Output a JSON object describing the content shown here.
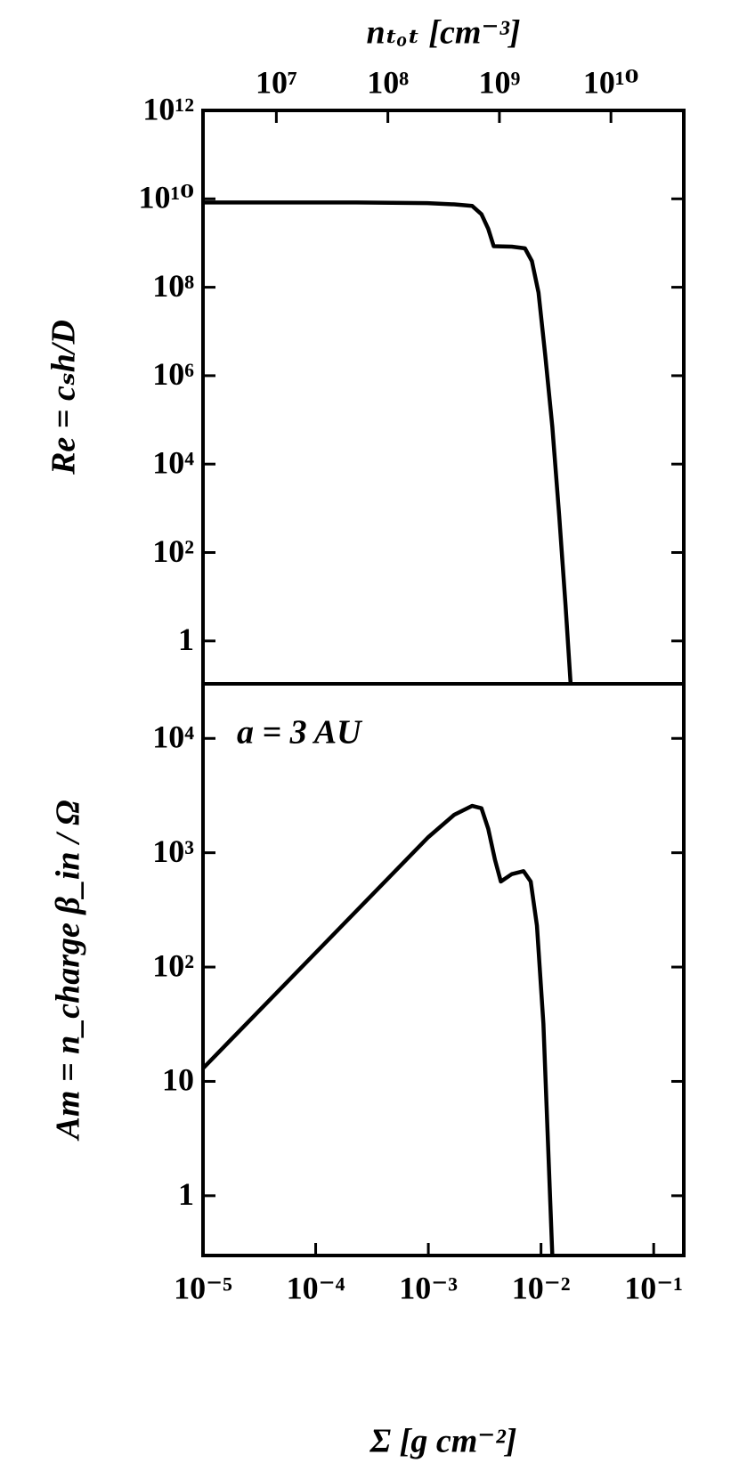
{
  "chart_data": [
    {
      "type": "line",
      "x2label": "nₜₒₜ [cm⁻³]",
      "ylabel": "Re = cₛh/D",
      "xlim": [
        1e-05,
        0.185
      ],
      "xscale": "log",
      "x2lim": [
        2200000.0,
        45000000000.0
      ],
      "x2ticks": [
        {
          "value": 10000000.0,
          "label": "10⁷"
        },
        {
          "value": 100000000.0,
          "label": "10⁸"
        },
        {
          "value": 1000000000.0,
          "label": "10⁹"
        },
        {
          "value": 10000000000.0,
          "label": "10¹⁰"
        }
      ],
      "ylim": [
        0.107,
        1000000000000.0
      ],
      "yscale": "log",
      "yticks": [
        1,
        {
          "value": 100,
          "label": "10²"
        },
        {
          "value": 10000.0,
          "label": "10⁴"
        },
        {
          "value": 1000000.0,
          "label": "10⁶"
        },
        {
          "value": 100000000.0,
          "label": "10⁸"
        },
        {
          "value": 10000000000.0,
          "label": "10¹⁰"
        },
        {
          "value": 1000000000000.0,
          "label": "10¹²"
        }
      ],
      "color": "#000000",
      "x": [
        1e-05,
        0.00023,
        0.00098,
        0.0017,
        0.00245,
        0.00296,
        0.0034,
        0.0038,
        0.0055,
        0.0072,
        0.0083,
        0.0095,
        0.0109,
        0.0126,
        0.0145,
        0.0165,
        0.0183
      ],
      "values": [
        8300000000.0,
        8300000000.0,
        8000000000.0,
        7500000000.0,
        6900000000.0,
        4500000000.0,
        2100000000.0,
        850000000.0,
        830000000.0,
        760000000.0,
        390000000.0,
        76000000.0,
        2900000.0,
        70000.0,
        680,
        6.5,
        0.11
      ]
    },
    {
      "type": "line",
      "xlabel": "Σ [g cm⁻²]",
      "ylabel": "Am = n_charge β_in / Ω",
      "annotation": "a = 3 AU",
      "xlim": [
        1e-05,
        0.185
      ],
      "xscale": "log",
      "xticks": [
        {
          "value": 1e-05,
          "label": "10⁻⁵"
        },
        {
          "value": 0.0001,
          "label": "10⁻⁴"
        },
        {
          "value": 0.001,
          "label": "10⁻³"
        },
        {
          "value": 0.01,
          "label": "10⁻²"
        },
        {
          "value": 0.1,
          "label": "10⁻¹"
        }
      ],
      "ylim": [
        0.3,
        30000.0
      ],
      "yscale": "log",
      "yticks": [
        1,
        10,
        {
          "value": 100,
          "label": "10²"
        },
        {
          "value": 1000,
          "label": "10³"
        },
        {
          "value": 10000.0,
          "label": "10⁴"
        }
      ],
      "color": "#000000",
      "x": [
        1e-05,
        0.001,
        0.0017,
        0.00245,
        0.00296,
        0.0034,
        0.0039,
        0.0044,
        0.0055,
        0.007,
        0.0081,
        0.0092,
        0.0105,
        0.0115,
        0.0126
      ],
      "values": [
        13,
        1370,
        2150,
        2570,
        2450,
        1620,
        870,
        560,
        650,
        690,
        560,
        230,
        32,
        3.1,
        0.3
      ]
    }
  ]
}
